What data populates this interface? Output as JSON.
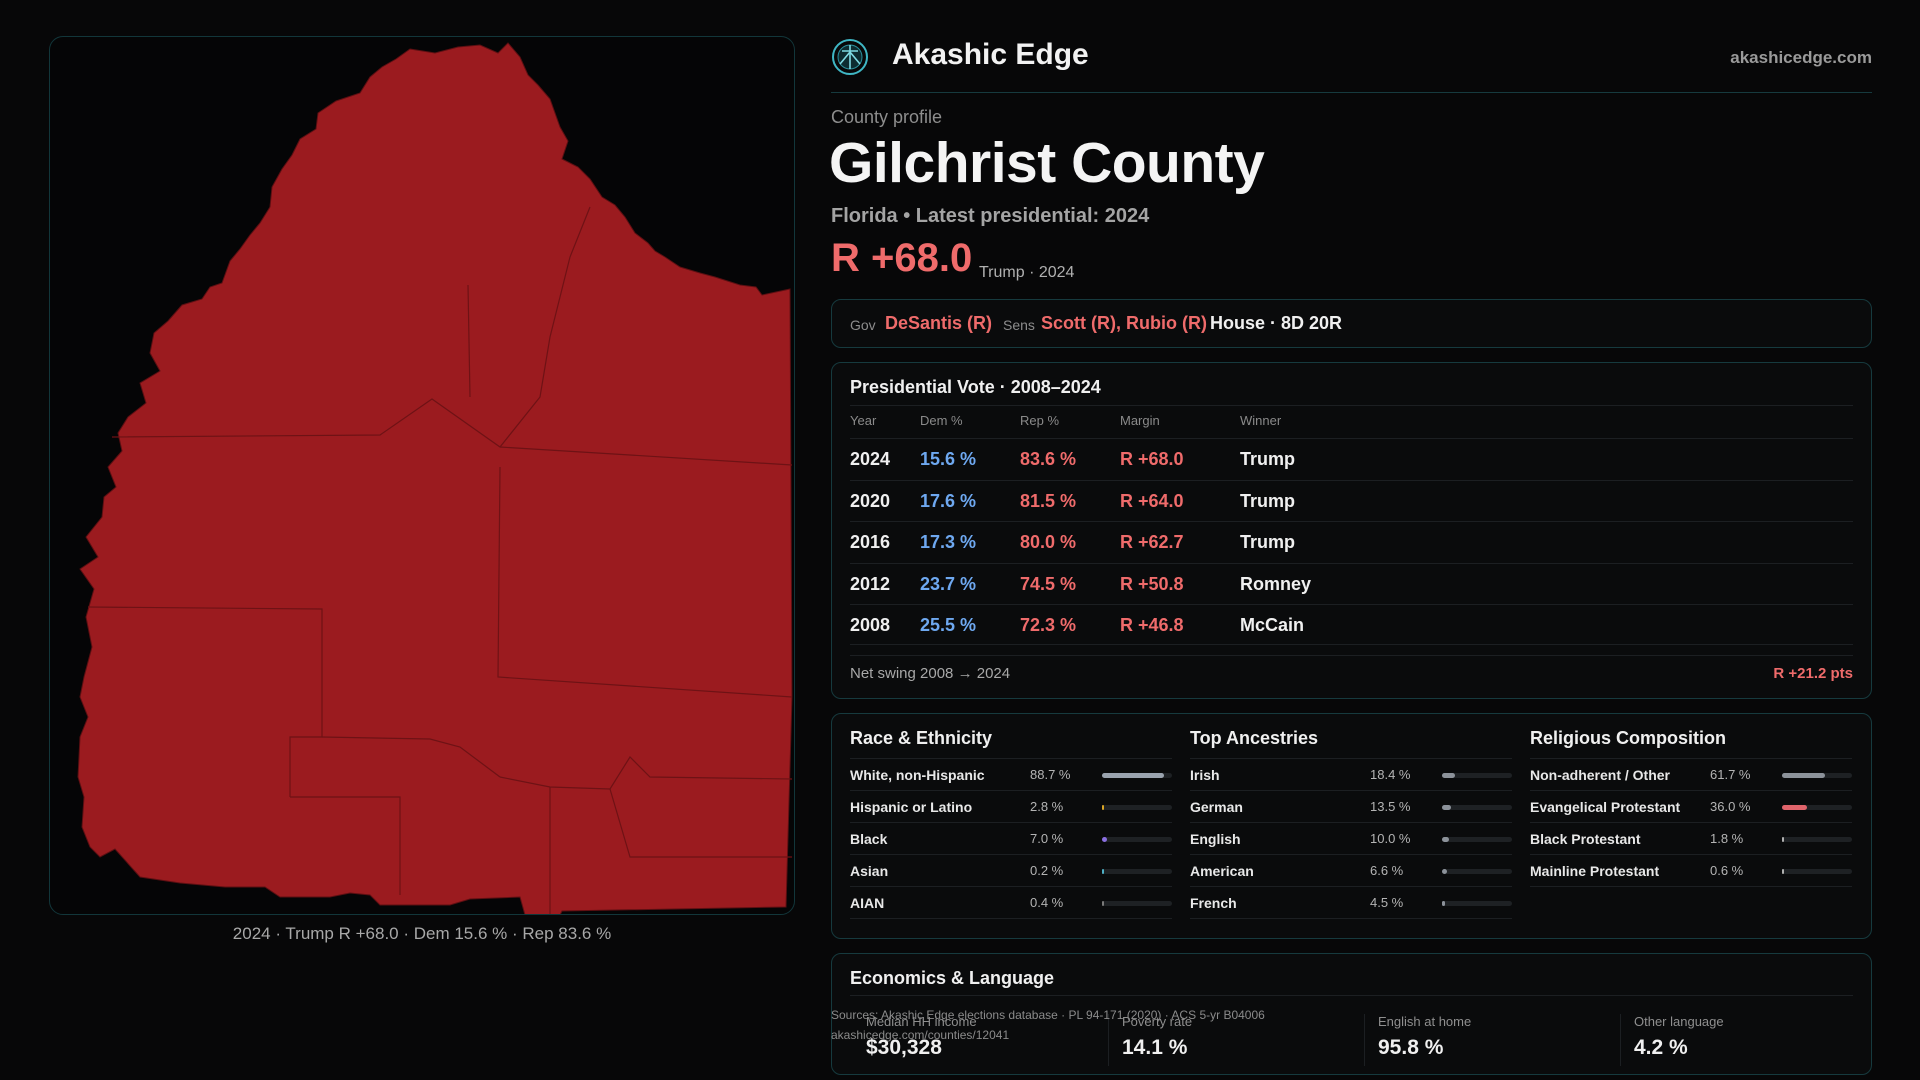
{
  "brand": {
    "name": "Akashic Edge",
    "url": "akashicedge.com",
    "logo_icon": "akashic-edge-logo-icon"
  },
  "profile": {
    "label": "County profile",
    "county": "Gilchrist County",
    "subtitle": "Florida • Latest presidential: 2024",
    "margin": "R +68.0",
    "margin_note": "Trump · 2024"
  },
  "officials": {
    "gov_label": "Gov",
    "gov": "DeSantis (R)",
    "sens_label": "Sens",
    "sens": "Scott (R), Rubio (R)",
    "house": "House · 8D 20R"
  },
  "map": {
    "caption": "2024 · Trump R +68.0 · Dem 15.6 % · Rep 83.6 %",
    "fill_color": "#9b1b1f",
    "border_color": "#7a1417"
  },
  "presidential": {
    "title": "Presidential Vote · 2008–2024",
    "headers": [
      "Year",
      "Dem %",
      "Rep %",
      "Margin",
      "Winner"
    ],
    "rows": [
      {
        "year": "2024",
        "dem": "15.6 %",
        "rep": "83.6 %",
        "margin": "R +68.0",
        "winner": "Trump"
      },
      {
        "year": "2020",
        "dem": "17.6 %",
        "rep": "81.5 %",
        "margin": "R +64.0",
        "winner": "Trump"
      },
      {
        "year": "2016",
        "dem": "17.3 %",
        "rep": "80.0 %",
        "margin": "R +62.7",
        "winner": "Trump"
      },
      {
        "year": "2012",
        "dem": "23.7 %",
        "rep": "74.5 %",
        "margin": "R +50.8",
        "winner": "Romney"
      },
      {
        "year": "2008",
        "dem": "25.5 %",
        "rep": "72.3 %",
        "margin": "R +46.8",
        "winner": "McCain"
      }
    ],
    "swing_label": "Net swing 2008 → 2024",
    "swing_value": "R +21.2 pts"
  },
  "race": {
    "title": "Race & Ethnicity",
    "items": [
      {
        "name": "White, non-Hispanic",
        "pct": "88.7 %",
        "value": 88.7,
        "color": "#9aa3ae"
      },
      {
        "name": "Hispanic or Latino",
        "pct": "2.8 %",
        "value": 2.8,
        "color": "#d9a526"
      },
      {
        "name": "Black",
        "pct": "7.0 %",
        "value": 7.0,
        "color": "#8a6fe0"
      },
      {
        "name": "Asian",
        "pct": "0.2 %",
        "value": 0.2,
        "color": "#4fb0c6"
      },
      {
        "name": "AIAN",
        "pct": "0.4 %",
        "value": 0.4,
        "color": "#7a7a7a"
      }
    ]
  },
  "ancestries": {
    "title": "Top Ancestries",
    "items": [
      {
        "name": "Irish",
        "pct": "18.4 %",
        "value": 18.4,
        "color": "#8c929a"
      },
      {
        "name": "German",
        "pct": "13.5 %",
        "value": 13.5,
        "color": "#8c929a"
      },
      {
        "name": "English",
        "pct": "10.0 %",
        "value": 10.0,
        "color": "#8c929a"
      },
      {
        "name": "American",
        "pct": "6.6 %",
        "value": 6.6,
        "color": "#8c929a"
      },
      {
        "name": "French",
        "pct": "4.5 %",
        "value": 4.5,
        "color": "#8c929a"
      }
    ]
  },
  "religion": {
    "title": "Religious Composition",
    "items": [
      {
        "name": "Non-adherent / Other",
        "pct": "61.7 %",
        "value": 61.7,
        "color": "#8c929a"
      },
      {
        "name": "Evangelical Protestant",
        "pct": "36.0 %",
        "value": 36.0,
        "color": "#e0646b"
      },
      {
        "name": "Black Protestant",
        "pct": "1.8 %",
        "value": 1.8,
        "color": "#b0b0b0"
      },
      {
        "name": "Mainline Protestant",
        "pct": "0.6 %",
        "value": 0.6,
        "color": "#b0b0b0"
      }
    ]
  },
  "economics": {
    "title": "Economics & Language",
    "stats": [
      {
        "label": "Median HH income",
        "value": "$30,328"
      },
      {
        "label": "Poverty rate",
        "value": "14.1 %"
      },
      {
        "label": "English at home",
        "value": "95.8 %"
      },
      {
        "label": "Other language",
        "value": "4.2 %"
      }
    ]
  },
  "sources": {
    "line1": "Sources: Akashic Edge elections database · PL 94-171 (2020) · ACS 5-yr B04006",
    "line2": "akashicedge.com/counties/12041"
  }
}
